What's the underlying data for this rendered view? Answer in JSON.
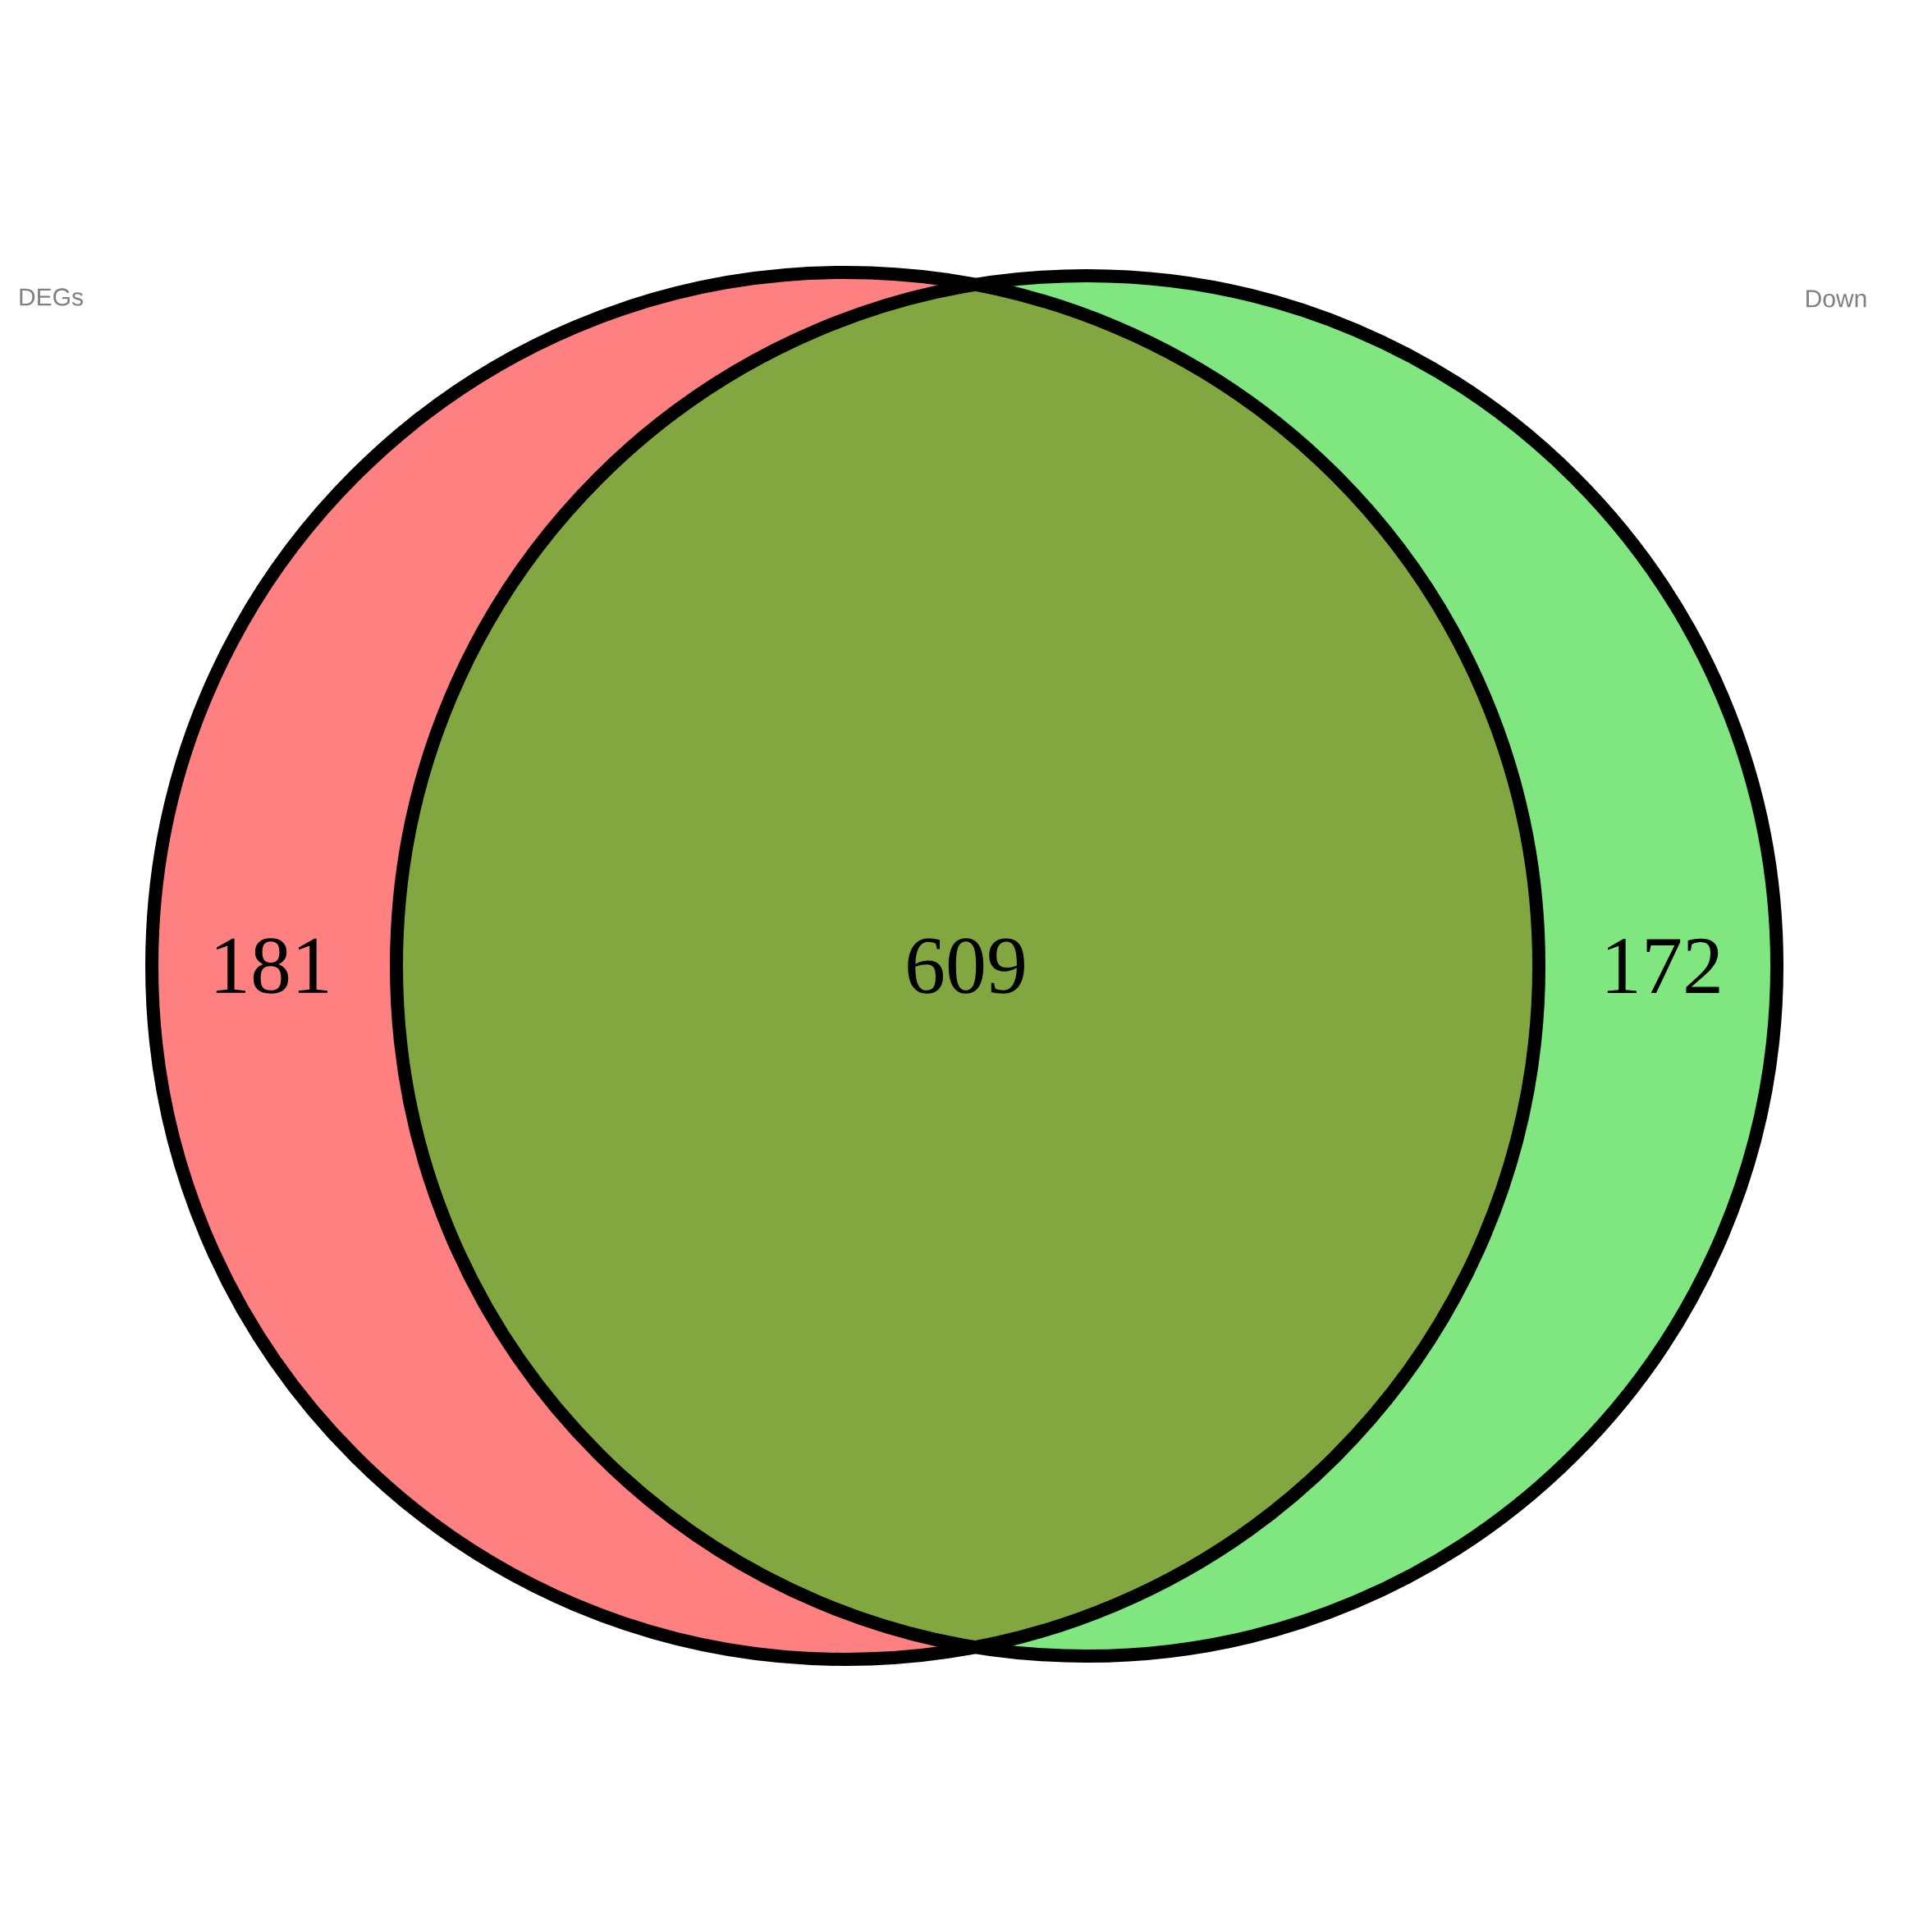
{
  "chart_data": {
    "type": "other",
    "categories": [
      "DEGs",
      null,
      "Down"
    ],
    "values": [
      181,
      609,
      172
    ],
    "data_labels": true,
    "colors": [
      "#ff8080",
      "#82a741",
      "#80e680"
    ]
  }
}
